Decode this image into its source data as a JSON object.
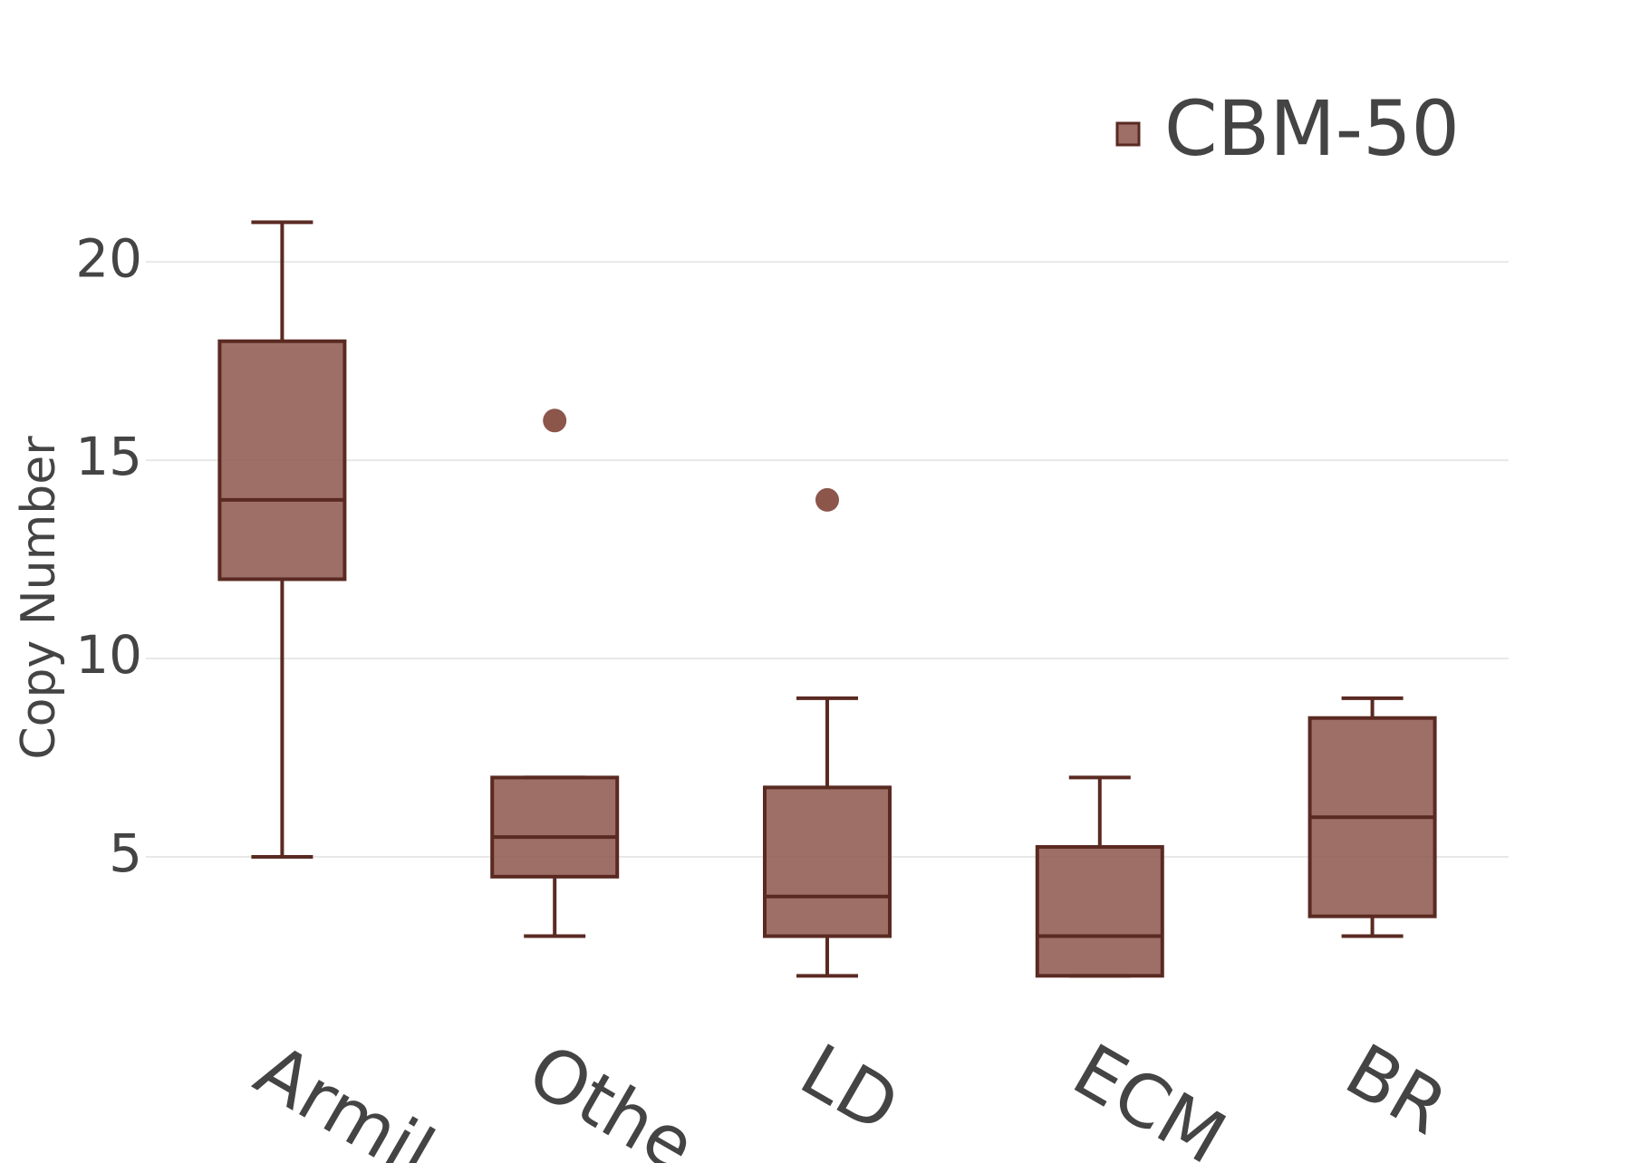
{
  "chart_data": {
    "type": "box",
    "y_title": "Copy Number",
    "categories": [
      "Armil",
      "Othe",
      "LD",
      "ECM",
      "BR"
    ],
    "series": [
      {
        "name": "CBM-50",
        "color": "#8c564b",
        "line_color": "#5a2a22",
        "min": [
          5,
          3,
          2,
          2,
          3
        ],
        "q1": [
          12,
          4.5,
          3,
          2,
          3.5
        ],
        "median": [
          14,
          5.5,
          4,
          3,
          6
        ],
        "q3": [
          18,
          7,
          6.75,
          5.25,
          8.5
        ],
        "max": [
          21,
          7,
          9,
          7,
          9
        ],
        "outliers": [
          [],
          [
            16
          ],
          [
            14
          ],
          [],
          []
        ]
      }
    ],
    "ylim": [
      1.3,
      24
    ],
    "yticks": [
      5,
      10,
      15,
      20
    ],
    "grid": true
  }
}
